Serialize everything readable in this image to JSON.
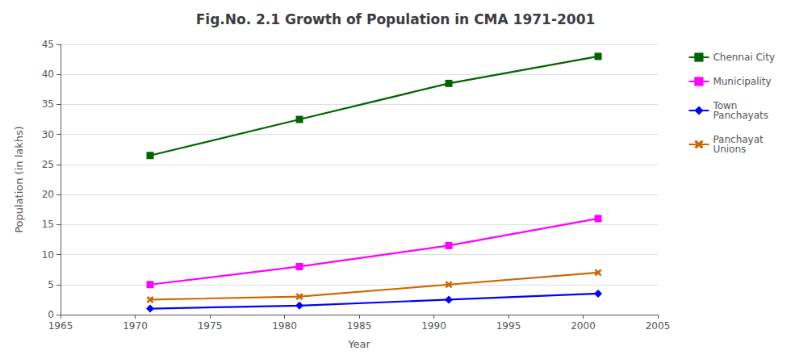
{
  "chart_data": {
    "type": "line",
    "title": "Fig.No. 2.1 Growth of Population in CMA 1971-2001",
    "xlabel": "Year",
    "ylabel": "Population (in lakhs)",
    "x": [
      1971,
      1981,
      1991,
      2001
    ],
    "series": [
      {
        "name": "Chennai City",
        "color": "#006400",
        "marker": "square",
        "values": [
          26.5,
          32.5,
          38.5,
          43.0
        ]
      },
      {
        "name": "Municipality",
        "color": "#FF00FF",
        "marker": "square",
        "values": [
          5.0,
          8.0,
          11.5,
          16.0
        ]
      },
      {
        "name": "Town\nPanchayats",
        "color": "#0000FF",
        "marker": "diamond",
        "values": [
          1.0,
          1.5,
          2.5,
          3.5
        ]
      },
      {
        "name": "Panchayat\nUnions",
        "color": "#CC6600",
        "marker": "x",
        "values": [
          2.5,
          3.0,
          5.0,
          7.0
        ]
      }
    ],
    "xlim": [
      1965,
      2005
    ],
    "xticks": [
      1965,
      1970,
      1975,
      1980,
      1985,
      1990,
      1995,
      2000,
      2005
    ],
    "ylim": [
      0,
      45
    ],
    "yticks": [
      0,
      5,
      10,
      15,
      20,
      25,
      30,
      35,
      40,
      45
    ],
    "grid": true,
    "legend": "right"
  }
}
